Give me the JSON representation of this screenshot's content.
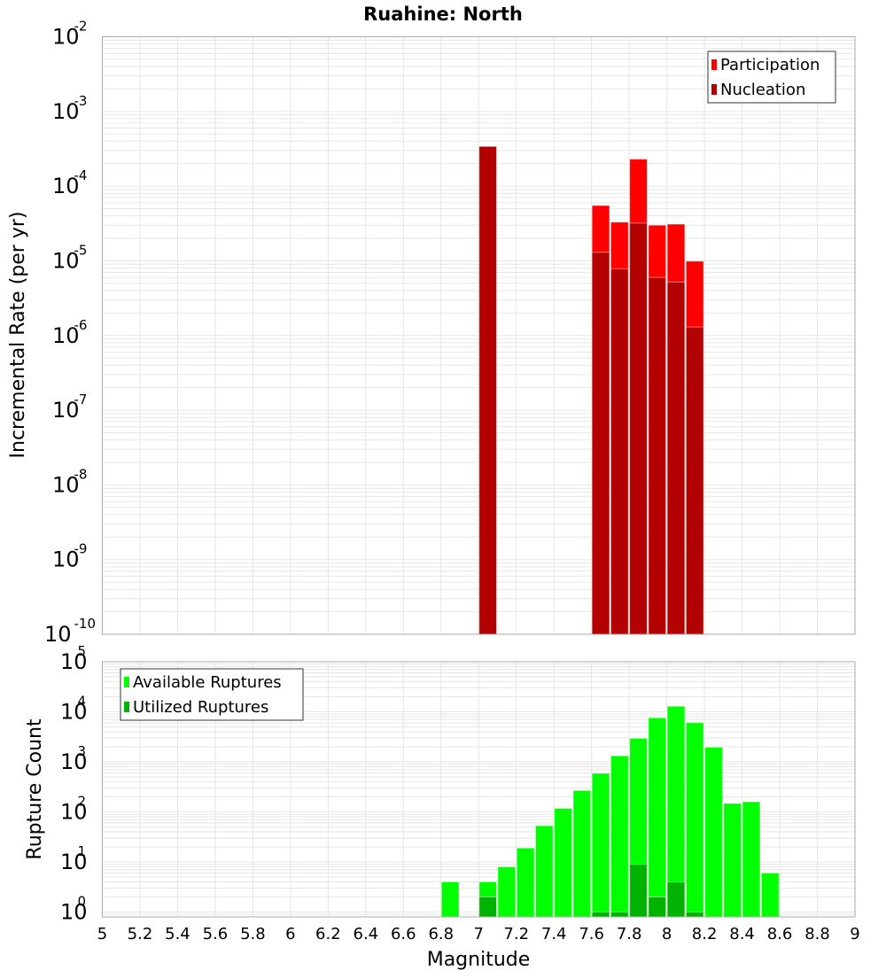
{
  "chart_data": [
    {
      "type": "bar",
      "title": "Ruahine: North",
      "xlabel": "",
      "ylabel": "Incremental Rate (per yr)",
      "yscale": "log",
      "ylim": [
        1e-10,
        0.01
      ],
      "xlim": [
        5,
        9
      ],
      "bin_width": 0.1,
      "y_tick_exponents": [
        -2,
        -3,
        -4,
        -5,
        -6,
        -7,
        -8,
        -9,
        -10
      ],
      "grid": true,
      "legend_position": "top-right",
      "colors": {
        "Participation": "#ff0000",
        "Nucleation": "#b30000"
      },
      "x": [
        7.05,
        7.65,
        7.75,
        7.85,
        7.95,
        8.05,
        8.15
      ],
      "series": [
        {
          "name": "Participation",
          "values": [
            0.00034,
            5.5e-05,
            3.3e-05,
            0.00023,
            3e-05,
            3.1e-05,
            9.9e-06
          ]
        },
        {
          "name": "Nucleation",
          "values": [
            0.00034,
            1.3e-05,
            7.8e-06,
            3.2e-05,
            6e-06,
            5.2e-06,
            1.3e-06
          ]
        }
      ]
    },
    {
      "type": "bar",
      "title": "",
      "xlabel": "Magnitude",
      "ylabel": "Rupture Count",
      "yscale": "log",
      "ylim": [
        0.8,
        100000.0
      ],
      "xlim": [
        5,
        9
      ],
      "bin_width": 0.1,
      "x_tick_labels": [
        "5",
        "5.2",
        "5.4",
        "5.6",
        "5.8",
        "6",
        "6.2",
        "6.4",
        "6.6",
        "6.8",
        "7",
        "7.2",
        "7.4",
        "7.6",
        "7.8",
        "8",
        "8.2",
        "8.4",
        "8.6",
        "8.8",
        "9"
      ],
      "y_tick_exponents": [
        5,
        4,
        3,
        2,
        1,
        0
      ],
      "grid": true,
      "legend_position": "top-left",
      "colors": {
        "Available Ruptures": "#00ff00",
        "Utilized Ruptures": "#00b300"
      },
      "x": [
        6.85,
        7.05,
        7.15,
        7.25,
        7.35,
        7.45,
        7.55,
        7.65,
        7.75,
        7.85,
        7.95,
        8.05,
        8.15,
        8.25,
        8.35,
        8.45,
        8.55
      ],
      "series": [
        {
          "name": "Available Ruptures",
          "values": [
            4,
            4,
            8,
            19,
            53,
            118,
            268,
            590,
            1320,
            2950,
            7600,
            12900,
            6050,
            1960,
            148,
            160,
            6
          ]
        },
        {
          "name": "Utilized Ruptures",
          "values": [
            0,
            2,
            0,
            0,
            0,
            0,
            0,
            1,
            1,
            9,
            2,
            4,
            1,
            0,
            0,
            0,
            0
          ]
        }
      ]
    }
  ]
}
